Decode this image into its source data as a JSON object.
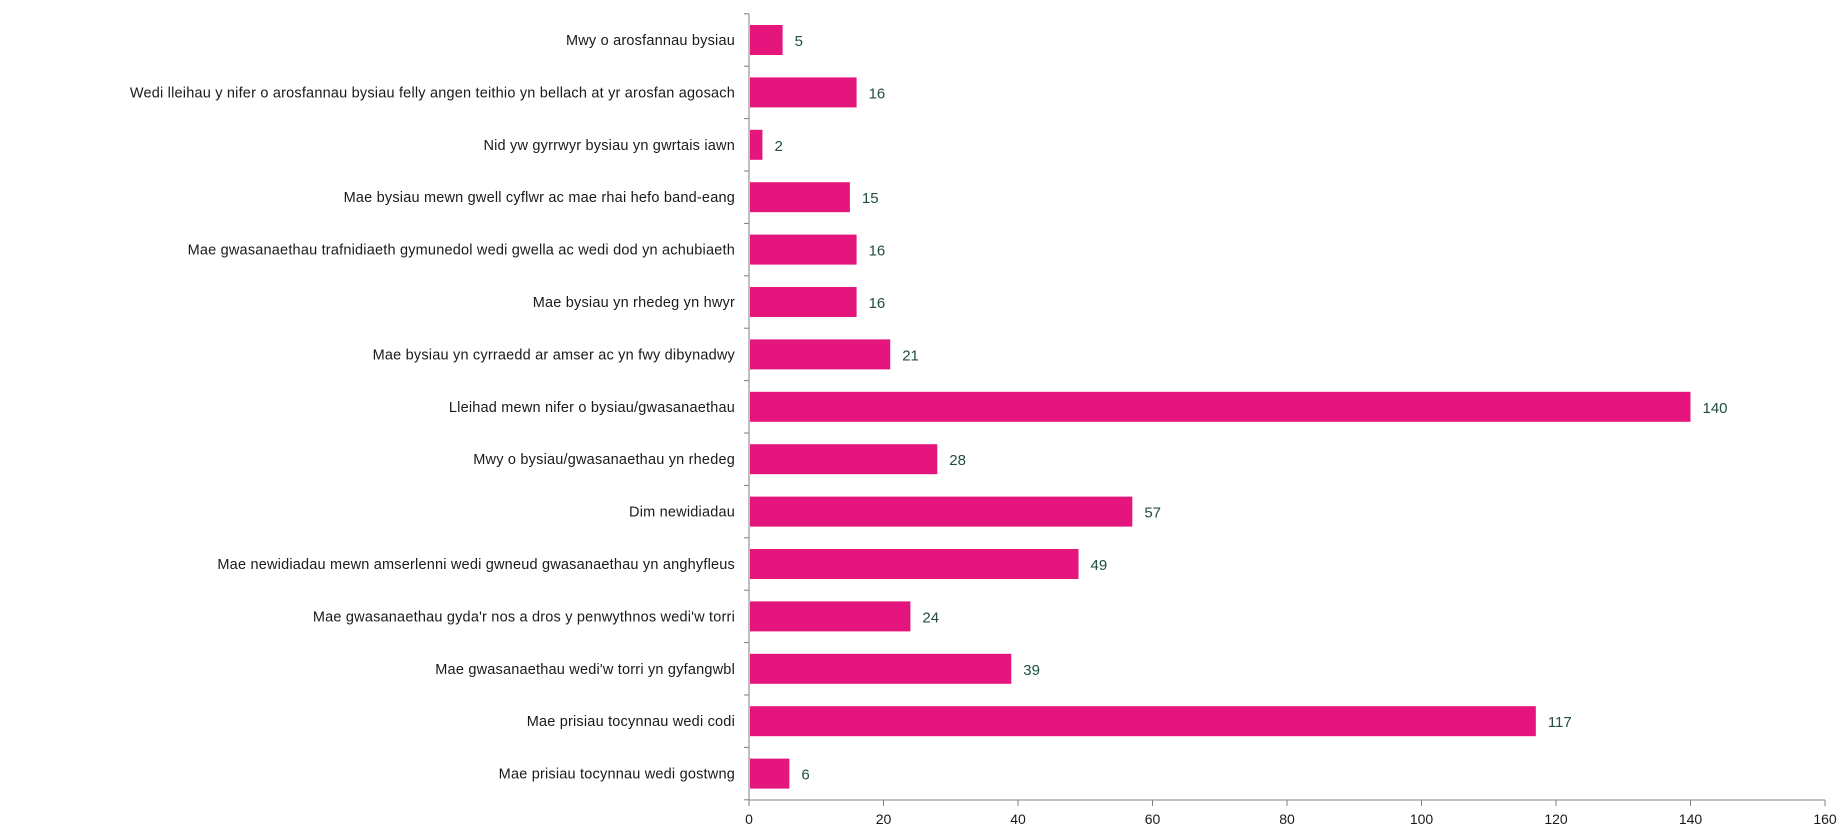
{
  "chart_data": {
    "type": "bar",
    "orientation": "horizontal",
    "title": "",
    "xlabel": "",
    "ylabel": "",
    "xlim": [
      0,
      160
    ],
    "x_ticks": [
      0,
      20,
      40,
      60,
      80,
      100,
      120,
      140,
      160
    ],
    "x_tick_labels": [
      "0",
      "20",
      "40",
      "60",
      "80",
      "100",
      "120",
      "140",
      "160"
    ],
    "grid": false,
    "legend": "none",
    "bar_color": "#e5157e",
    "data_label_color": "#1f4e3d",
    "categories": [
      "Mwy o arosfannau bysiau",
      "Wedi lleihau y nifer o arosfannau bysiau felly angen teithio yn bellach at yr arosfan agosach",
      "Nid yw gyrrwyr bysiau yn gwrtais iawn",
      "Mae bysiau mewn gwell cyflwr ac mae rhai hefo band-eang",
      "Mae gwasanaethau trafnidiaeth gymunedol wedi gwella ac wedi dod yn achubiaeth",
      "Mae bysiau yn rhedeg yn hwyr",
      "Mae bysiau yn cyrraedd ar amser ac yn fwy dibynadwy",
      "Lleihad mewn nifer o bysiau/gwasanaethau",
      "Mwy o bysiau/gwasanaethau yn rhedeg",
      "Dim newidiadau",
      "Mae newidiadau mewn amserlenni wedi gwneud gwasanaethau yn anghyfleus",
      "Mae gwasanaethau gyda'r nos a dros y penwythnos wedi'w torri",
      "Mae gwasanaethau wedi'w torri yn gyfangwbl",
      "Mae prisiau tocynnau wedi codi",
      "Mae prisiau tocynnau wedi gostwng"
    ],
    "values": [
      5,
      16,
      2,
      15,
      16,
      16,
      21,
      140,
      28,
      57,
      49,
      24,
      39,
      117,
      6
    ],
    "value_labels": [
      "5",
      "16",
      "2",
      "15",
      "16",
      "16",
      "21",
      "140",
      "28",
      "57",
      "49",
      "24",
      "39",
      "117",
      "6"
    ]
  }
}
